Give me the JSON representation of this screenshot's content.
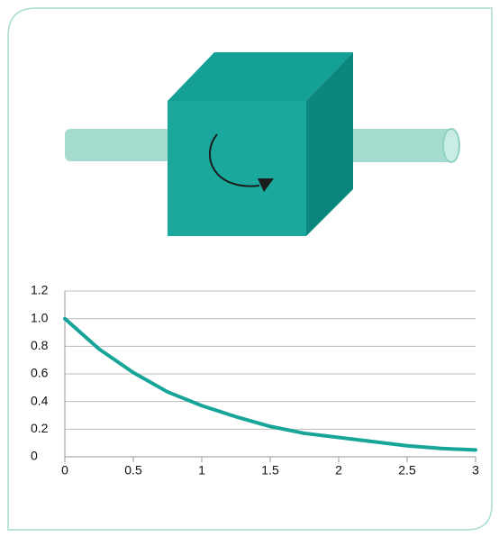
{
  "chart_data": {
    "type": "line",
    "x": [
      0,
      0.25,
      0.5,
      0.75,
      1,
      1.25,
      1.5,
      1.75,
      2,
      2.25,
      2.5,
      2.75,
      3
    ],
    "series": [
      {
        "color": "#17a59a",
        "values": [
          1.0,
          0.78,
          0.61,
          0.47,
          0.37,
          0.29,
          0.22,
          0.17,
          0.14,
          0.11,
          0.08,
          0.06,
          0.05
        ]
      }
    ],
    "xlim": [
      0,
      3
    ],
    "ylim": [
      0,
      1.2
    ],
    "xticks": [
      0,
      0.5,
      1,
      1.5,
      2,
      2.5,
      3
    ],
    "yticks": [
      0,
      0.2,
      0.4,
      0.6,
      0.8,
      {
        "value": 1,
        "label": "1.0"
      },
      1.2
    ],
    "grid": true
  }
}
